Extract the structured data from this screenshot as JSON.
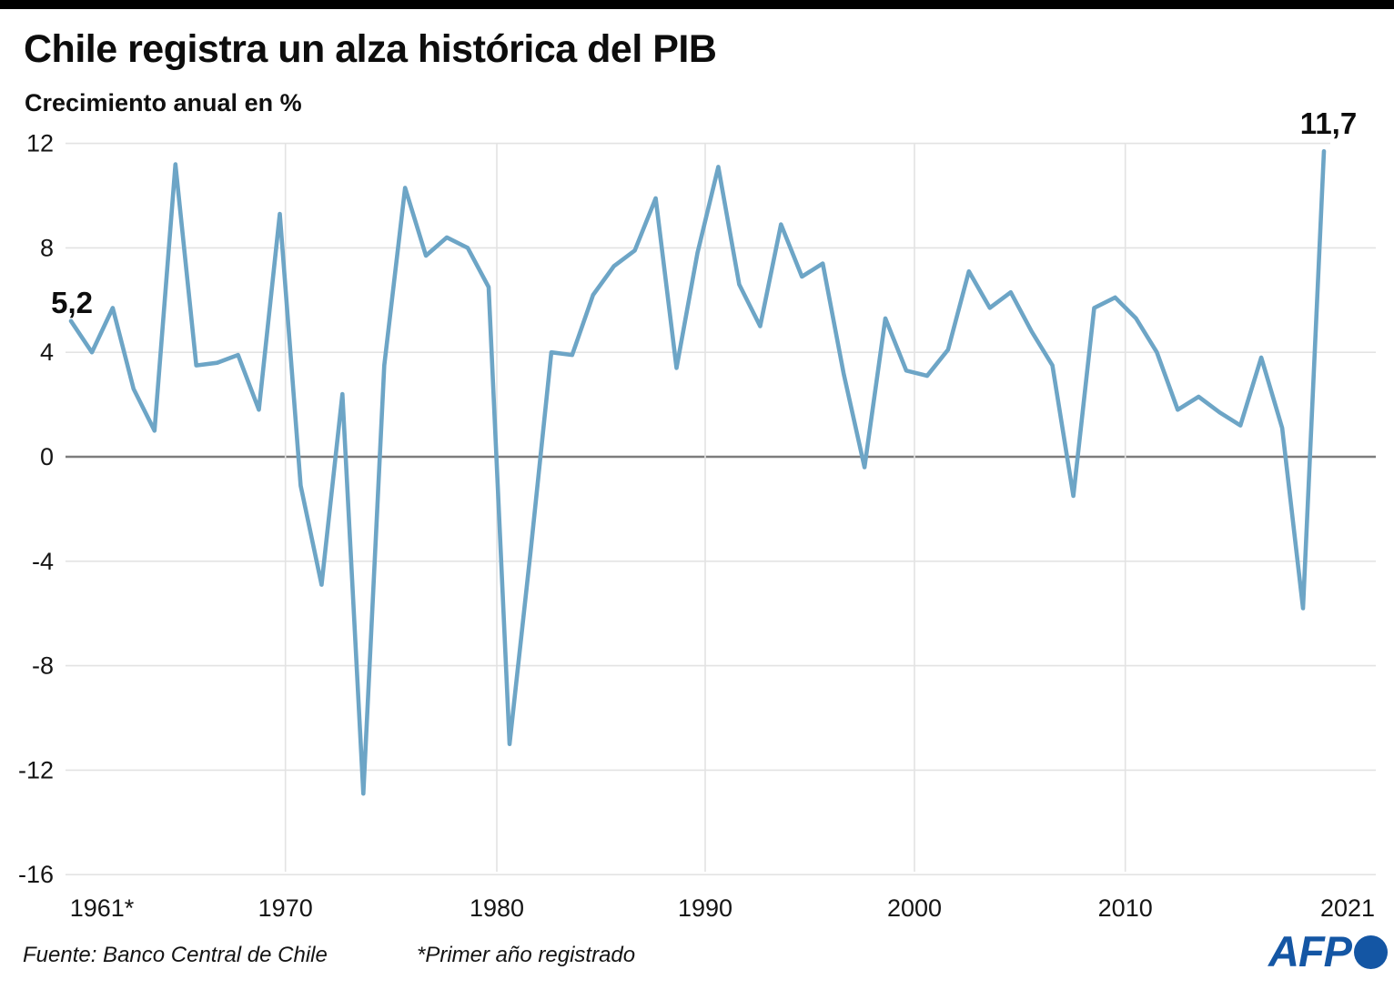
{
  "header": {
    "title": "Chile registra un alza histórica del PIB",
    "subtitle": "Crecimiento anual en %"
  },
  "chart_data": {
    "type": "line",
    "title": "Chile registra un alza histórica del PIB",
    "ylabel": "Crecimiento anual en %",
    "xlabel": "",
    "ylim": [
      -16,
      12
    ],
    "grid": true,
    "legend_position": "none",
    "line_color": "#6da5c6",
    "years": [
      1961,
      1962,
      1963,
      1964,
      1965,
      1966,
      1967,
      1968,
      1969,
      1970,
      1971,
      1972,
      1973,
      1974,
      1975,
      1976,
      1977,
      1978,
      1979,
      1980,
      1981,
      1982,
      1983,
      1984,
      1985,
      1986,
      1987,
      1988,
      1989,
      1990,
      1991,
      1992,
      1993,
      1994,
      1995,
      1996,
      1997,
      1998,
      1999,
      2000,
      2001,
      2002,
      2003,
      2004,
      2005,
      2006,
      2007,
      2008,
      2009,
      2010,
      2011,
      2012,
      2013,
      2014,
      2015,
      2016,
      2017,
      2018,
      2019,
      2020,
      2021
    ],
    "values": [
      5.2,
      4.0,
      5.7,
      2.6,
      1.0,
      11.2,
      3.5,
      3.6,
      3.9,
      1.8,
      9.3,
      -1.1,
      -4.9,
      2.4,
      -12.9,
      3.5,
      10.3,
      7.7,
      8.4,
      8.0,
      6.5,
      -11.0,
      -3.7,
      4.0,
      3.9,
      6.2,
      7.3,
      7.9,
      9.9,
      3.4,
      7.8,
      11.1,
      6.6,
      5.0,
      8.9,
      6.9,
      7.4,
      3.2,
      -0.4,
      5.3,
      3.3,
      3.1,
      4.1,
      7.1,
      5.7,
      6.3,
      4.8,
      3.5,
      -1.5,
      5.7,
      6.1,
      5.3,
      4.0,
      1.8,
      2.3,
      1.7,
      1.2,
      3.8,
      1.1,
      -5.8,
      11.7
    ],
    "y_ticks": [
      12,
      8,
      4,
      0,
      -4,
      -8,
      -12,
      -16
    ],
    "x_ticks": [
      "1961*",
      "1970",
      "1980",
      "1990",
      "2000",
      "2010",
      "2021"
    ],
    "annotations": [
      {
        "label": "5,2",
        "year": 1961
      },
      {
        "label": "11,7",
        "year": 2021
      }
    ]
  },
  "footer": {
    "source": "Fuente: Banco Central de Chile",
    "note": "*Primer año registrado",
    "logo_text": "AFP"
  }
}
